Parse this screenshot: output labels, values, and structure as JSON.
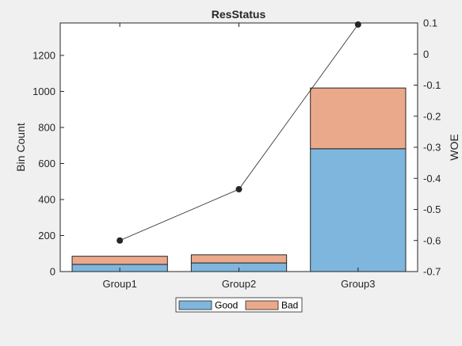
{
  "chart_data": {
    "type": "bar",
    "title": "ResStatus",
    "categories": [
      "Group1",
      "Group2",
      "Group3"
    ],
    "stacked": true,
    "series": [
      {
        "name": "Good",
        "values": [
          40,
          48,
          682
        ],
        "color": "#7eb6dd"
      },
      {
        "name": "Bad",
        "values": [
          45,
          45,
          337
        ],
        "color": "#eba98b"
      }
    ],
    "ylabel": "Bin Count",
    "ylim": [
      0,
      1380
    ],
    "yticks": [
      0,
      200,
      400,
      600,
      800,
      1000,
      1200
    ],
    "woe": {
      "values": [
        -0.6,
        -0.435,
        0.095
      ],
      "color": "#262626"
    },
    "y2label": "WOE",
    "y2lim": [
      -0.7,
      0.1
    ],
    "y2ticks": [
      -0.7,
      -0.6,
      -0.5,
      -0.4,
      -0.3,
      -0.2,
      -0.1,
      0,
      0.1
    ],
    "y2ticklabels": [
      "-0.7",
      "-0.6",
      "-0.5",
      "-0.4",
      "-0.3",
      "-0.2",
      "-0.1",
      "0",
      "0.1"
    ],
    "legend": {
      "position": "bottom"
    }
  }
}
